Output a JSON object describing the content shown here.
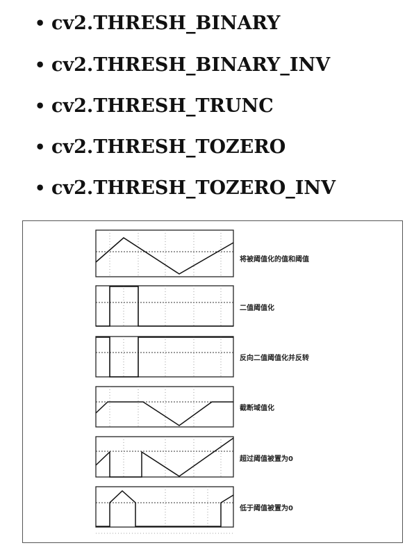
{
  "bullets": [
    {
      "text": "cv2.THRESH_BINARY"
    },
    {
      "text": "cv2.THRESH_BINARY_INV"
    },
    {
      "text": "cv2.THRESH_TRUNC"
    },
    {
      "text": "cv2.THRESH_TOZERO"
    },
    {
      "text": "cv2.THRESH_TOZERO_INV"
    }
  ],
  "bullet_symbol": "•",
  "figure": {
    "panels": [
      {
        "label": "将被阈值化的值和阈值"
      },
      {
        "label": "二值阈值化"
      },
      {
        "label": "反向二值阈值化并反转"
      },
      {
        "label": "截断域值化"
      },
      {
        "label": "超过阈值被置为0"
      },
      {
        "label": "低于阈值被置为0"
      }
    ]
  },
  "colors": {
    "text": "#111111",
    "line": "#222222",
    "grid": "#777777"
  }
}
